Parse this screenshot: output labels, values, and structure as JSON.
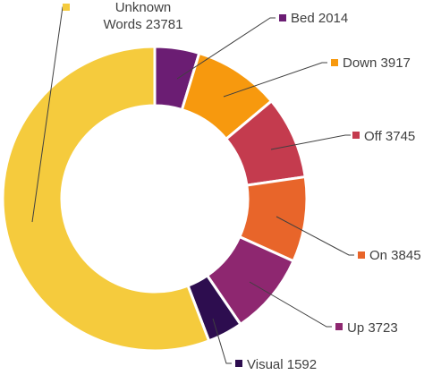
{
  "chart_data": {
    "type": "pie",
    "donut": true,
    "title": "",
    "legend": "none",
    "slices": [
      {
        "name": "Bed",
        "value": 2014,
        "color": "#6b1d73",
        "text": "Bed 2014"
      },
      {
        "name": "Down",
        "value": 3917,
        "color": "#f7990e",
        "text": "Down 3917"
      },
      {
        "name": "Off",
        "value": 3745,
        "color": "#c43b4e",
        "text": "Off 3745"
      },
      {
        "name": "On",
        "value": 3845,
        "color": "#e8652a",
        "text": "On 3845"
      },
      {
        "name": "Up",
        "value": 3723,
        "color": "#8e2770",
        "text": "Up 3723"
      },
      {
        "name": "Visual",
        "value": 1592,
        "color": "#2d0d4f",
        "text": "Visual 1592"
      },
      {
        "name": "Unknown Words",
        "value": 23781,
        "color": "#f5cb3d",
        "text_lines": [
          "Unknown",
          "Words 23781"
        ]
      }
    ]
  }
}
